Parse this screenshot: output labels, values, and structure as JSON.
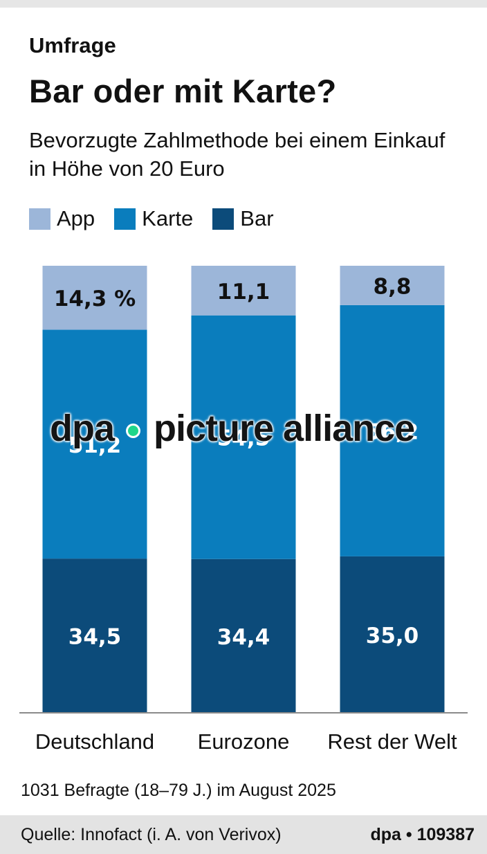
{
  "header": {
    "kicker": "Umfrage",
    "title": "Bar oder mit Karte?",
    "subtitle": "Bevorzugte Zahlmethode bei einem Einkauf in Höhe von 20 Euro"
  },
  "legend": [
    {
      "label": "App",
      "color": "#9cb6d9"
    },
    {
      "label": "Karte",
      "color": "#0a7dbd"
    },
    {
      "label": "Bar",
      "color": "#0c4b7a"
    }
  ],
  "watermark": {
    "left": "dpa",
    "right": "picture alliance",
    "dot_color": "#1fd68a"
  },
  "note": "1031 Befragte (18–79 J.) im August 2025",
  "footer": {
    "source": "Quelle: Innofact (i. A. von Verivox)",
    "agency": "dpa • 109387"
  },
  "chart_data": {
    "type": "bar",
    "stacked": true,
    "categories": [
      "Deutschland",
      "Eurozone",
      "Rest der Welt"
    ],
    "series": [
      {
        "name": "Bar",
        "color": "#0c4b7a",
        "values": [
          34.5,
          34.4,
          35.0
        ],
        "labels": [
          "34,5",
          "34,4",
          "35,0"
        ],
        "label_color": "#ffffff"
      },
      {
        "name": "Karte",
        "color": "#0a7dbd",
        "values": [
          51.2,
          54.5,
          56.2
        ],
        "labels": [
          "51,2",
          "54,5",
          "56,2"
        ],
        "label_color": "#ffffff"
      },
      {
        "name": "App",
        "color": "#9cb6d9",
        "values": [
          14.3,
          11.1,
          8.8
        ],
        "labels": [
          "14,3 %",
          "11,1",
          "8,8"
        ],
        "label_color": "#111111"
      }
    ],
    "ylim": [
      0,
      100
    ],
    "grid": false
  }
}
